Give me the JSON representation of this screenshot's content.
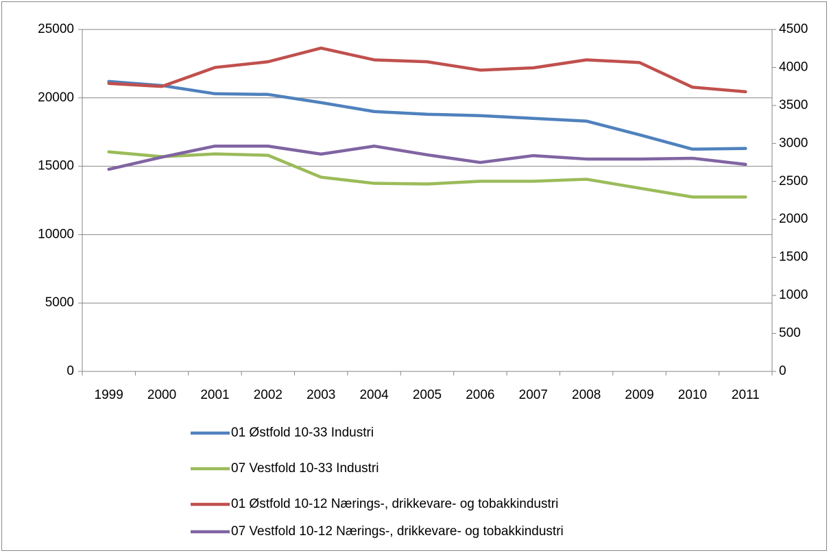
{
  "chart_data": {
    "type": "line",
    "categories": [
      "1999",
      "2000",
      "2001",
      "2002",
      "2003",
      "2004",
      "2005",
      "2006",
      "2007",
      "2008",
      "2009",
      "2010",
      "2011"
    ],
    "ylim": [
      0,
      25000
    ],
    "yticks": [
      0,
      5000,
      10000,
      15000,
      20000,
      25000
    ],
    "y2lim": [
      0,
      4500
    ],
    "y2ticks": [
      0,
      500,
      1000,
      1500,
      2000,
      2500,
      3000,
      3500,
      4000,
      4500
    ],
    "grid": true,
    "legend": "bottom",
    "series": [
      {
        "name": "01 Østfold 10-33 Industri",
        "color": "#4f81bd",
        "values": [
          21200,
          20900,
          20300,
          20250,
          19650,
          19000,
          18800,
          18700,
          18500,
          18300,
          17300,
          16250,
          16300
        ]
      },
      {
        "name": "07 Vestfold 10-33 Industri",
        "color": "#9bbb59",
        "values": [
          16050,
          15700,
          15900,
          15800,
          14200,
          13750,
          13700,
          13900,
          13900,
          14050,
          13400,
          12750,
          12750
        ]
      },
      {
        "name": "01 Østfold 10-12 Nærings-, drikkevare- og tobakkindustri",
        "color": "#c0504d",
        "axis": "y2",
        "values": [
          3790,
          3750,
          4000,
          4075,
          4255,
          4100,
          4075,
          3965,
          3995,
          4100,
          4065,
          3740,
          3680
        ]
      },
      {
        "name": "07 Vestfold 10-12 Nærings-, drikkevare- og tobakkindustri",
        "color": "#8064a2",
        "axis": "y2",
        "values": [
          2660,
          2820,
          2965,
          2965,
          2860,
          2965,
          2850,
          2750,
          2840,
          2795,
          2795,
          2805,
          2725
        ]
      }
    ]
  }
}
